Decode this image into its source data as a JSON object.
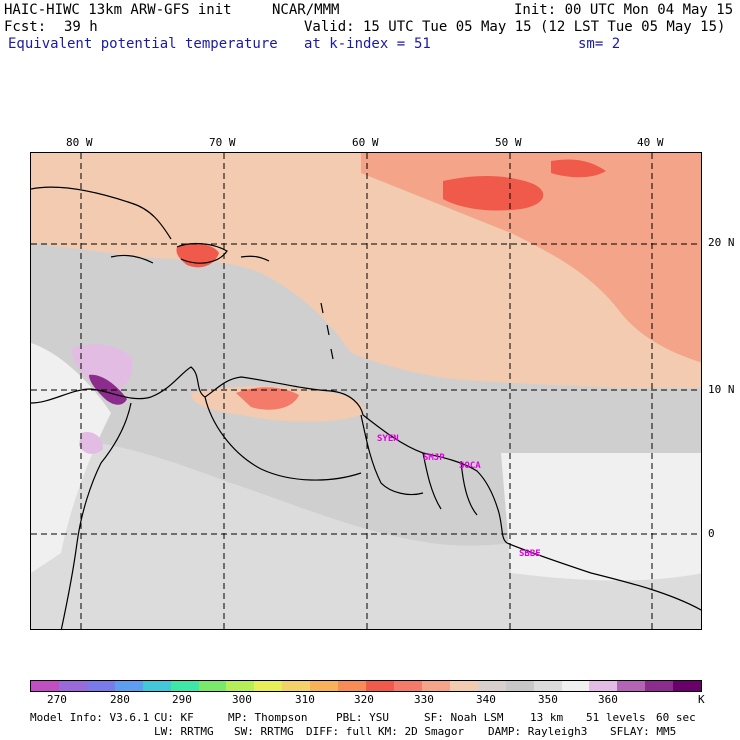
{
  "header": {
    "model_title": "HAIC-HIWC 13km ARW-GFS init",
    "org": "NCAR/MMM",
    "init": "Init: 00 UTC Mon 04 May 15",
    "fcst_label": "Fcst:",
    "fcst_value": "39 h",
    "valid": "Valid: 15 UTC Tue 05 May 15 (12 LST Tue 05 May 15)",
    "field_name": "Equivalent potential temperature",
    "level": "at k-index =",
    "level_value": "51",
    "smoothing": "sm= 2"
  },
  "map": {
    "longitude_labels": [
      "80 W",
      "70 W",
      "60 W",
      "50 W",
      "40 W"
    ],
    "latitude_labels": [
      "20 N",
      "10 N",
      "0"
    ],
    "stations": [
      "SYEN",
      "SMJP",
      "SOCA",
      "SBBE"
    ]
  },
  "colorbar": {
    "unit": "K",
    "tick_labels": [
      "270",
      "280",
      "290",
      "300",
      "310",
      "320",
      "330",
      "340",
      "350",
      "360"
    ],
    "colors": [
      "#c24fc2",
      "#9a6ad8",
      "#7a7ae8",
      "#5e9ef0",
      "#42c8d8",
      "#3ee6a8",
      "#7ae86a",
      "#b6ee5a",
      "#e6ee5a",
      "#f4d26a",
      "#f8b25a",
      "#f68c56",
      "#f05a4a",
      "#f47a6a",
      "#f4a488",
      "#f2cbb0",
      "#d8d0cc",
      "#c8c8c8",
      "#dcdcdc",
      "#f0f0f0",
      "#e2bce2",
      "#b464b4",
      "#8c2c8c",
      "#6a006a"
    ]
  },
  "model_info": {
    "line1": [
      "Model Info: V3.6.1",
      "CU: KF",
      "MP: Thompson",
      "PBL: YSU",
      "SF: Noah LSM",
      "13 km",
      "51 levels",
      "60 sec"
    ],
    "line2": [
      "LW: RRTMG",
      "SW: RRTMG",
      "DIFF: full",
      "KM: 2D Smagor",
      "DAMP: Rayleigh3",
      "SFLAY: MM5"
    ]
  }
}
